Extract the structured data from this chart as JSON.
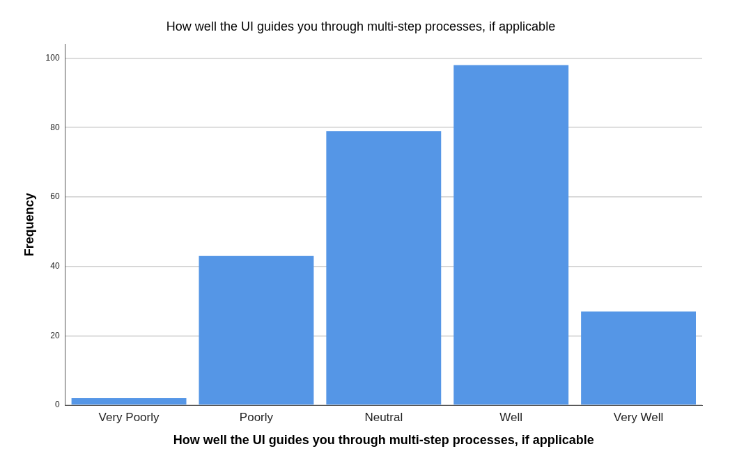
{
  "chart_data": {
    "type": "bar",
    "title": "How well the UI guides you through multi-step processes, if applicable",
    "xlabel": "How well the UI guides you through multi-step processes, if applicable",
    "ylabel": "Frequency",
    "categories": [
      "Very Poorly",
      "Poorly",
      "Neutral",
      "Well",
      "Very Well"
    ],
    "values": [
      2,
      43,
      79,
      98,
      27
    ],
    "color": "#5596e6",
    "ylim": [
      0,
      104
    ],
    "yticks": [
      0,
      20,
      40,
      60,
      80,
      100
    ],
    "grid": "y",
    "legend": false
  }
}
